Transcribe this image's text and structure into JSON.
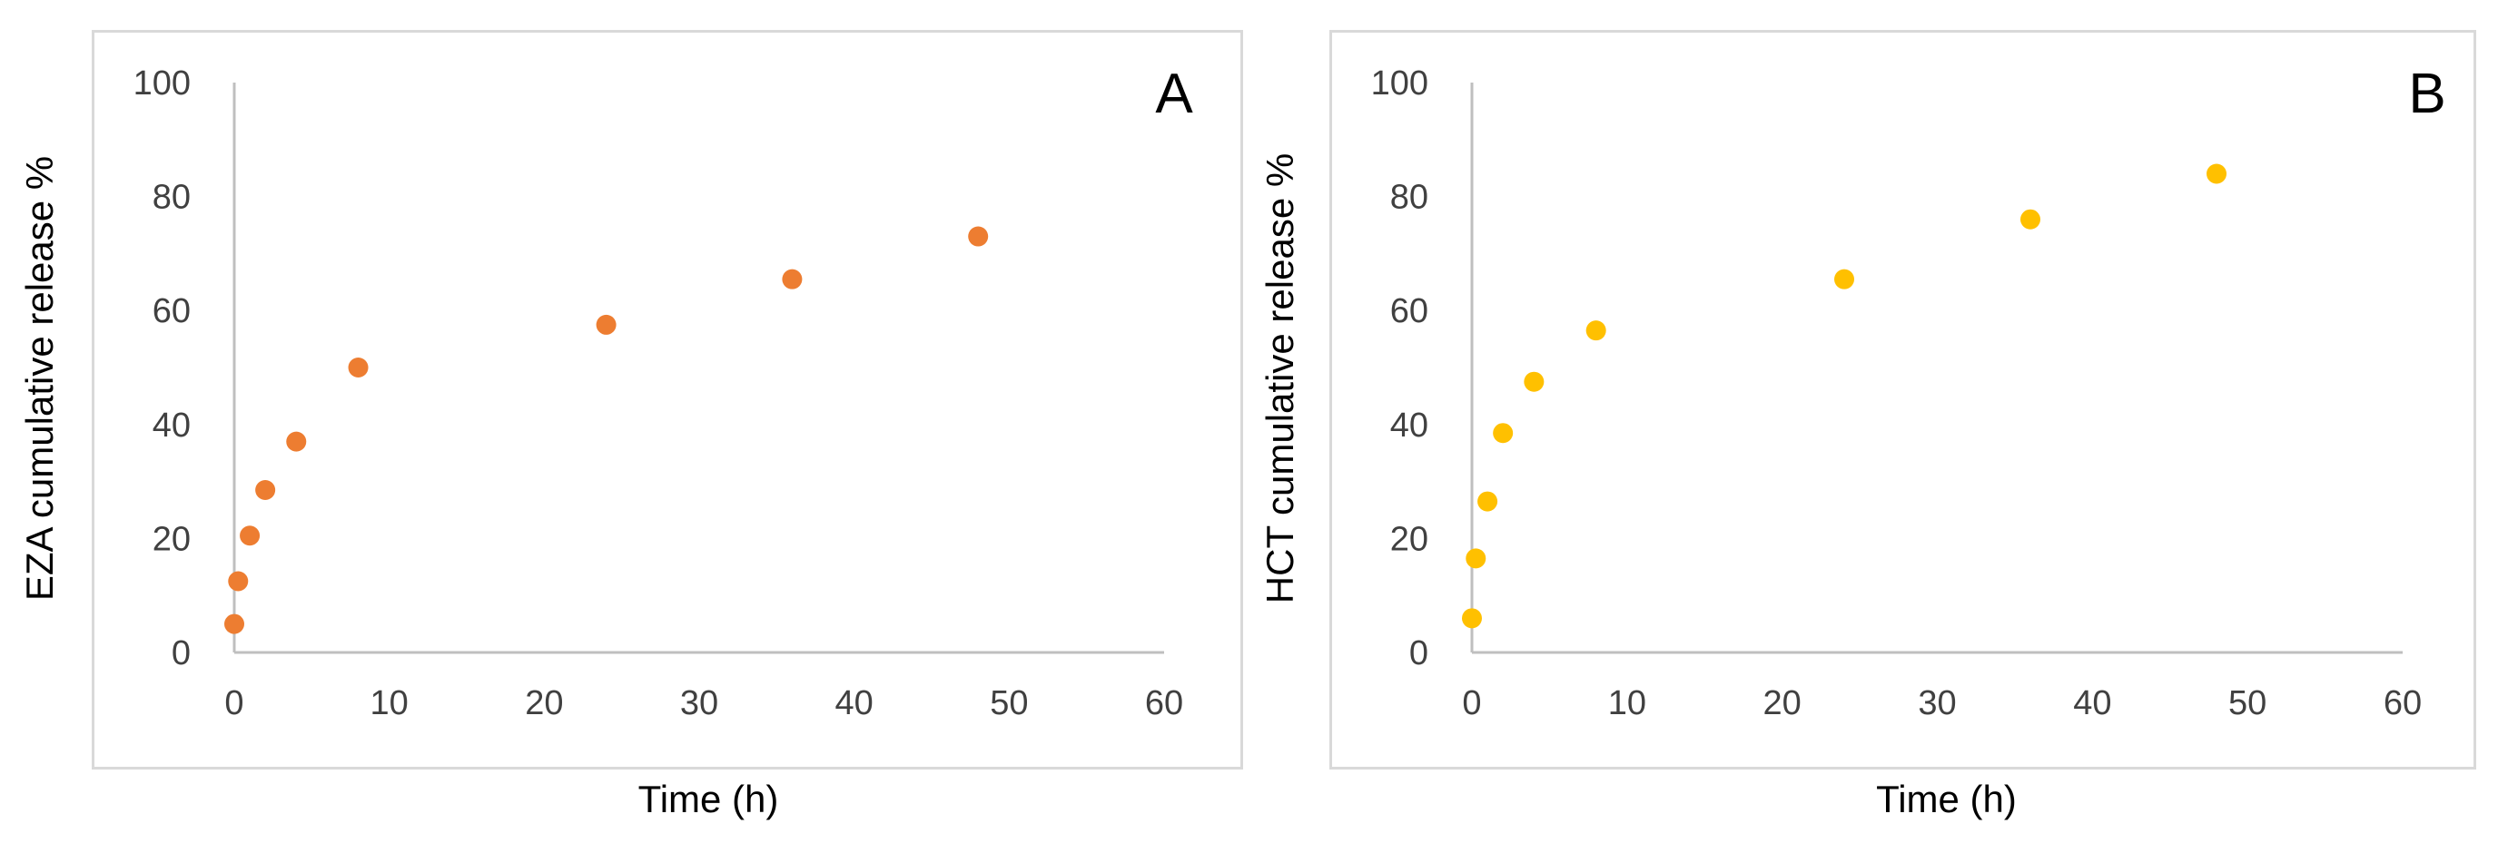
{
  "colors": {
    "axis": "#bfbfbf",
    "text": "#404040"
  },
  "chart_data": [
    {
      "type": "scatter",
      "panel_label": "A",
      "xlabel": "Time (h)",
      "ylabel": "EZA  cumulative release %",
      "xlim": [
        0,
        60
      ],
      "ylim": [
        0,
        100
      ],
      "x_ticks": [
        0,
        10,
        20,
        30,
        40,
        50,
        60
      ],
      "y_ticks": [
        0,
        20,
        40,
        60,
        80,
        100
      ],
      "grid": false,
      "legend": "none",
      "series": [
        {
          "color": "#ed7d31",
          "points": [
            {
              "x": 0,
              "y": 5
            },
            {
              "x": 0.25,
              "y": 12.5
            },
            {
              "x": 1,
              "y": 20.5
            },
            {
              "x": 2,
              "y": 28.5
            },
            {
              "x": 4,
              "y": 37
            },
            {
              "x": 8,
              "y": 50
            },
            {
              "x": 24,
              "y": 57.5
            },
            {
              "x": 36,
              "y": 65.5
            },
            {
              "x": 48,
              "y": 73
            }
          ]
        }
      ]
    },
    {
      "type": "scatter",
      "panel_label": "B",
      "xlabel": "Time (h)",
      "ylabel": "HCT  cumulative release %",
      "xlim": [
        0,
        60
      ],
      "ylim": [
        0,
        100
      ],
      "x_ticks": [
        0,
        10,
        20,
        30,
        40,
        50,
        60
      ],
      "y_ticks": [
        0,
        20,
        40,
        60,
        80,
        100
      ],
      "grid": false,
      "legend": "none",
      "series": [
        {
          "color": "#ffc000",
          "points": [
            {
              "x": 0,
              "y": 6
            },
            {
              "x": 0.25,
              "y": 16.5
            },
            {
              "x": 1,
              "y": 26.5
            },
            {
              "x": 2,
              "y": 38.5
            },
            {
              "x": 4,
              "y": 47.5
            },
            {
              "x": 8,
              "y": 56.5
            },
            {
              "x": 24,
              "y": 65.5
            },
            {
              "x": 36,
              "y": 76
            },
            {
              "x": 48,
              "y": 84
            }
          ]
        }
      ]
    }
  ]
}
